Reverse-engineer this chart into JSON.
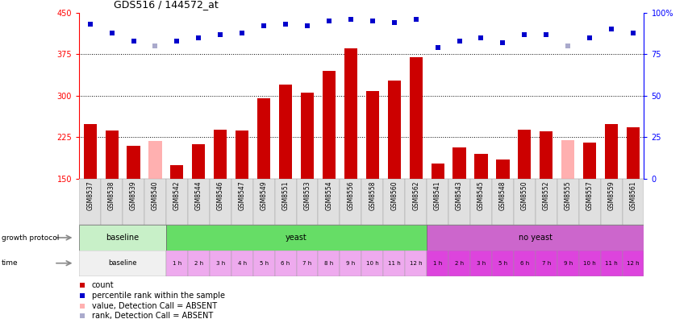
{
  "title": "GDS516 / 144572_at",
  "samples": [
    "GSM8537",
    "GSM8538",
    "GSM8539",
    "GSM8540",
    "GSM8542",
    "GSM8544",
    "GSM8546",
    "GSM8547",
    "GSM8549",
    "GSM8551",
    "GSM8553",
    "GSM8554",
    "GSM8556",
    "GSM8558",
    "GSM8560",
    "GSM8562",
    "GSM8541",
    "GSM8543",
    "GSM8545",
    "GSM8548",
    "GSM8550",
    "GSM8552",
    "GSM8555",
    "GSM8557",
    "GSM8559",
    "GSM8561"
  ],
  "counts": [
    248,
    237,
    210,
    218,
    175,
    212,
    238,
    237,
    295,
    320,
    305,
    345,
    385,
    308,
    328,
    370,
    178,
    207,
    195,
    185,
    238,
    235,
    220,
    215,
    248,
    243
  ],
  "absent_bar": [
    false,
    false,
    false,
    true,
    false,
    false,
    false,
    false,
    false,
    false,
    false,
    false,
    false,
    false,
    false,
    false,
    false,
    false,
    false,
    false,
    false,
    false,
    true,
    false,
    false,
    false
  ],
  "percentile_rank": [
    93,
    88,
    83,
    80,
    83,
    85,
    87,
    88,
    92,
    93,
    92,
    95,
    96,
    95,
    94,
    96,
    79,
    83,
    85,
    82,
    87,
    87,
    80,
    85,
    90,
    88
  ],
  "absent_rank": [
    false,
    false,
    false,
    true,
    false,
    false,
    false,
    false,
    false,
    false,
    false,
    false,
    false,
    false,
    false,
    false,
    false,
    false,
    false,
    false,
    false,
    false,
    true,
    false,
    false,
    false
  ],
  "ylim_left": [
    150,
    450
  ],
  "ylim_right": [
    0,
    100
  ],
  "yticks_left": [
    150,
    225,
    300,
    375,
    450
  ],
  "yticks_right": [
    0,
    25,
    50,
    75,
    100
  ],
  "bar_color": "#cc0000",
  "bar_absent_color": "#ffb0b0",
  "rank_color": "#0000cc",
  "rank_absent_color": "#aaaacc",
  "baseline_gp_color": "#c8f0c8",
  "yeast_gp_color": "#66dd66",
  "no_yeast_gp_color": "#cc66cc",
  "time_baseline_color": "#f0f0f0",
  "time_yeast_color": "#eeaaee",
  "time_noyeast_color": "#dd44dd",
  "separator_color": "#888888",
  "gp_time_labels_yeast": [
    "1 h",
    "2 h",
    "3 h",
    "4 h",
    "5 h",
    "6 h",
    "7 h",
    "8 h",
    "9 h",
    "10 h",
    "11 h",
    "12 h"
  ],
  "gp_time_labels_noyeast": [
    "1 h",
    "2 h",
    "3 h",
    "5 h",
    "6 h",
    "7 h",
    "9 h",
    "10 h",
    "11 h",
    "12 h"
  ],
  "legend_items": [
    {
      "color": "#cc0000",
      "label": "count"
    },
    {
      "color": "#0000cc",
      "label": "percentile rank within the sample"
    },
    {
      "color": "#ffb0b0",
      "label": "value, Detection Call = ABSENT"
    },
    {
      "color": "#aaaacc",
      "label": "rank, Detection Call = ABSENT"
    }
  ]
}
